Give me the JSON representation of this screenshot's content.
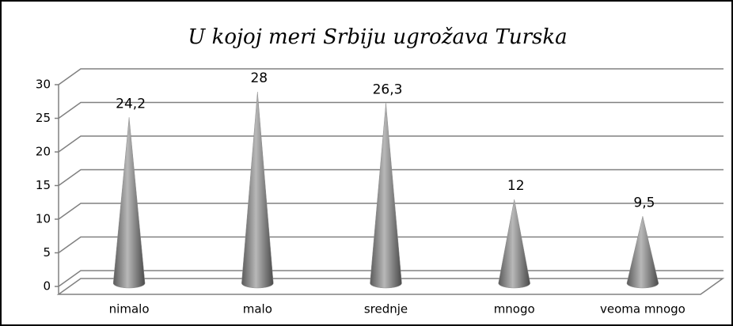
{
  "chart_data": {
    "type": "cone",
    "title": "U kojoj meri Srbiju ugrožava Turska",
    "categories": [
      "nimalo",
      "malo",
      "srednje",
      "mnogo",
      "veoma mnogo"
    ],
    "values": [
      24.2,
      28,
      26.3,
      12,
      9.5
    ],
    "value_labels": [
      "24,2",
      "28",
      "26,3",
      "12",
      "9,5"
    ],
    "color": "#8c8c8c",
    "ylim": [
      0,
      30
    ],
    "yticks": [
      0,
      5,
      10,
      15,
      20,
      25,
      30
    ],
    "grid": true
  }
}
